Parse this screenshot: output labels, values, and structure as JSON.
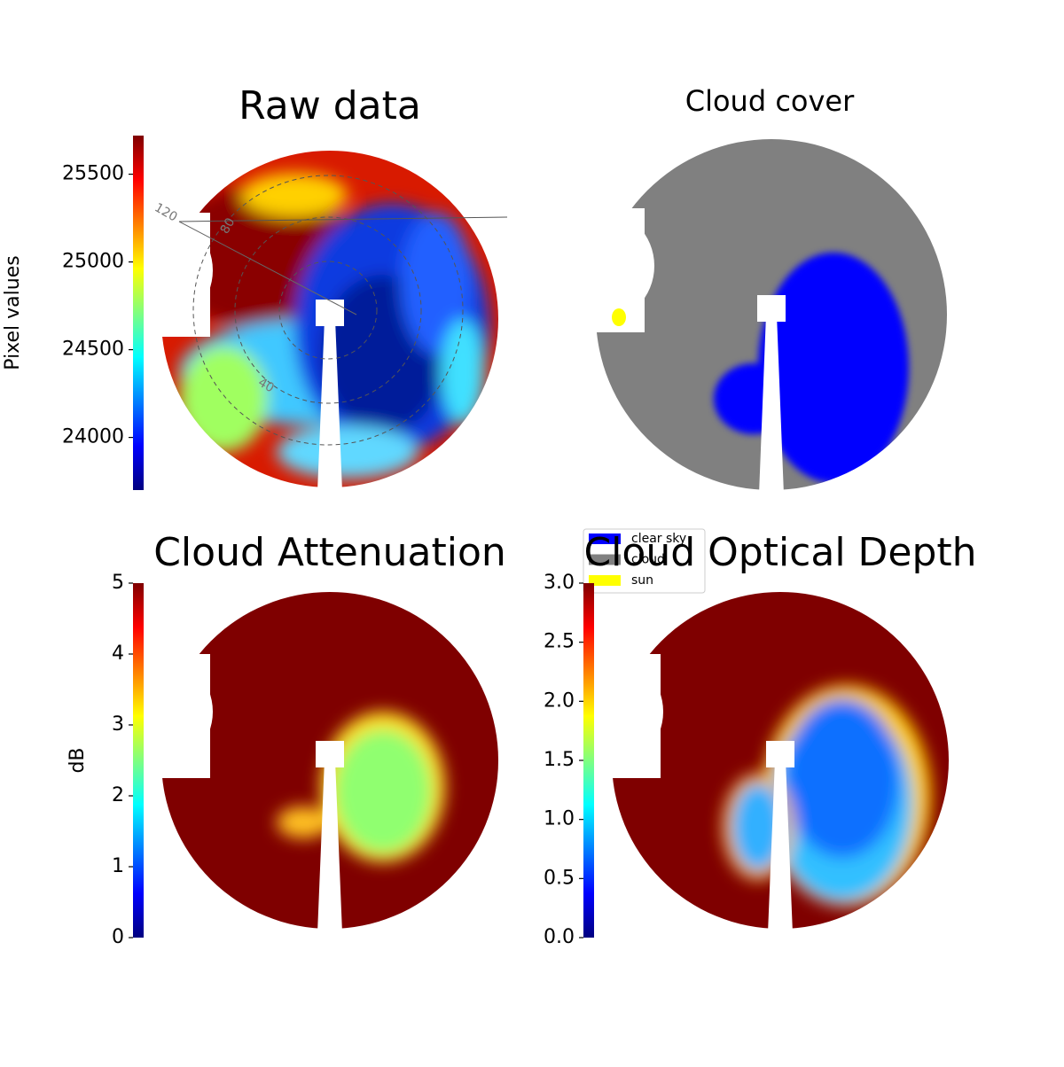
{
  "chart_data": [
    {
      "type": "image",
      "title": "Raw data",
      "colormap": "jet",
      "colorbar_label": "Pixel values",
      "clim": [
        23700,
        25720
      ],
      "ticks": [
        24000,
        24500,
        25000,
        25500
      ],
      "annotations": [
        "120",
        "80",
        "40"
      ]
    },
    {
      "type": "image",
      "title": "Cloud cover",
      "legend": [
        {
          "name": "clear sky",
          "color": "#0000ff"
        },
        {
          "name": "cloud",
          "color": "#808080"
        },
        {
          "name": "sun",
          "color": "#ffff00"
        }
      ]
    },
    {
      "type": "image",
      "title": "Cloud Attenuation",
      "colormap": "jet",
      "colorbar_label": "dB",
      "clim": [
        0,
        5
      ],
      "ticks": [
        0,
        1,
        2,
        3,
        4,
        5
      ]
    },
    {
      "type": "image",
      "title": "Cloud Optical Depth",
      "colormap": "jet",
      "clim": [
        0,
        3
      ],
      "ticks": [
        {
          "value": 0,
          "label": "0.0"
        },
        {
          "value": 0.5,
          "label": "0.5"
        },
        {
          "value": 1,
          "label": "1.0"
        },
        {
          "value": 1.5,
          "label": "1.5"
        },
        {
          "value": 2,
          "label": "2.0"
        },
        {
          "value": 2.5,
          "label": "2.5"
        },
        {
          "value": 3,
          "label": "3.0"
        }
      ]
    }
  ]
}
